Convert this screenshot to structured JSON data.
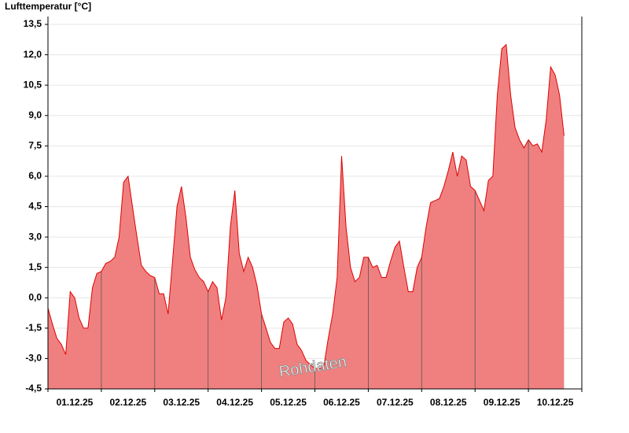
{
  "chart_data": {
    "type": "area",
    "y_label": "Lufttemperatur [°C]",
    "watermark": "Rohdaten",
    "categories": [
      "01.12.25",
      "02.12.25",
      "03.12.25",
      "04.12.25",
      "05.12.25",
      "06.12.25",
      "07.12.25",
      "08.12.25",
      "09.12.25",
      "10.12.25"
    ],
    "values": [
      [
        -0.5,
        -1.3,
        -2.0,
        -2.3,
        -2.8,
        0.3,
        0.0,
        -1.0,
        -1.5,
        -1.5,
        0.5,
        1.2
      ],
      [
        1.3,
        1.7,
        1.8,
        2.0,
        3.0,
        5.7,
        6.0,
        4.5,
        3.0,
        1.6,
        1.3,
        1.1
      ],
      [
        1.0,
        0.2,
        0.2,
        -0.8,
        1.8,
        4.5,
        5.5,
        4.0,
        2.0,
        1.4,
        1.0,
        0.8
      ],
      [
        0.3,
        0.8,
        0.5,
        -1.1,
        0.0,
        3.5,
        5.3,
        2.2,
        1.3,
        2.0,
        1.5,
        0.6
      ],
      [
        -0.8,
        -1.5,
        -2.2,
        -2.5,
        -2.5,
        -1.2,
        -1.0,
        -1.3,
        -2.3,
        -2.6,
        -3.1,
        -3.3
      ],
      [
        -3.5,
        -3.5,
        -3.4,
        -2.0,
        -0.8,
        1.0,
        7.0,
        3.5,
        1.5,
        0.8,
        1.0,
        2.0
      ],
      [
        2.0,
        1.5,
        1.6,
        1.0,
        1.0,
        1.8,
        2.5,
        2.8,
        1.5,
        0.3,
        0.3,
        1.5
      ],
      [
        2.0,
        3.5,
        4.7,
        4.8,
        4.9,
        5.5,
        6.3,
        7.2,
        6.0,
        7.0,
        6.8,
        5.5
      ],
      [
        5.3,
        4.8,
        4.3,
        5.8,
        6.0,
        10.0,
        12.3,
        12.5,
        10.0,
        8.4,
        7.8,
        7.4
      ],
      [
        7.8,
        7.5,
        7.6,
        7.2,
        8.8,
        11.4,
        11.0,
        10.0,
        8.0
      ]
    ],
    "color": "#f08080",
    "line_color": "#e00000",
    "ylim": [
      -4.5,
      13.5
    ],
    "yticks": [
      {
        "value": -4.5,
        "label": "-4,5"
      },
      {
        "value": -3,
        "label": "-3,0"
      },
      {
        "value": -1.5,
        "label": "-1,5"
      },
      {
        "value": 0,
        "label": "0,0"
      },
      {
        "value": 1.5,
        "label": "1,5"
      },
      {
        "value": 3,
        "label": "3,0"
      },
      {
        "value": 4.5,
        "label": "4,5"
      },
      {
        "value": 6,
        "label": "6,0"
      },
      {
        "value": 7.5,
        "label": "7,5"
      },
      {
        "value": 9,
        "label": "9,0"
      },
      {
        "value": 10.5,
        "label": "10,5"
      },
      {
        "value": 12,
        "label": "12,0"
      },
      {
        "value": 13.5,
        "label": "13,5"
      }
    ],
    "grid": true
  }
}
